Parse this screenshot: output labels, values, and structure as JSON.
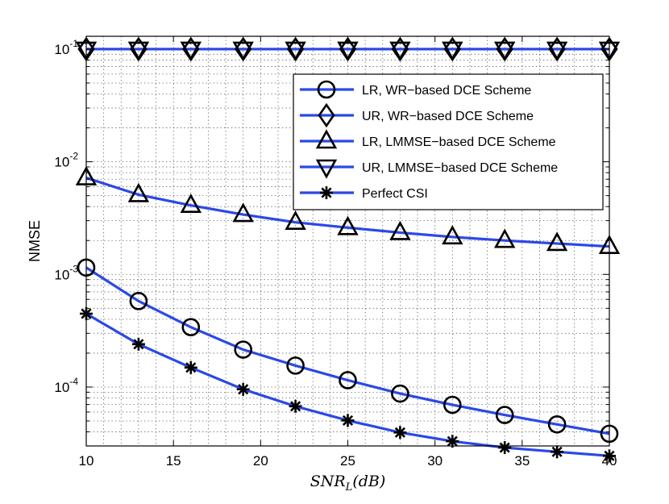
{
  "chart_data": {
    "type": "line",
    "title": "",
    "xlabel": "SNR_L(dB)",
    "xlabel_main": "SNR",
    "xlabel_sub": "L",
    "xlabel_rest": "(dB)",
    "ylabel": "NMSE",
    "yscale": "log",
    "xlim": [
      10,
      40
    ],
    "ylim": [
      3e-05,
      0.13
    ],
    "grid": true,
    "legend_position": "upper-right",
    "x": [
      10,
      13,
      16,
      19,
      22,
      25,
      28,
      31,
      34,
      37,
      40
    ],
    "xticks": [
      "10",
      "15",
      "20",
      "25",
      "30",
      "35",
      "40"
    ],
    "yticks": [
      {
        "value": 0.1,
        "base": "10",
        "exp": "-1"
      },
      {
        "value": 0.01,
        "base": "10",
        "exp": "-2"
      },
      {
        "value": 0.001,
        "base": "10",
        "exp": "-3"
      },
      {
        "value": 0.0001,
        "base": "10",
        "exp": "-4"
      }
    ],
    "series": [
      {
        "name": "LR, WR−based DCE Scheme",
        "marker": "circle",
        "values": [
          0.00115,
          0.00058,
          0.00034,
          0.000215,
          0.000155,
          0.000115,
          8.75e-05,
          6.95e-05,
          5.65e-05,
          4.66e-05,
          3.85e-05
        ]
      },
      {
        "name": "UR, WR−based DCE Scheme",
        "marker": "diamond",
        "values": [
          0.1,
          0.1,
          0.1,
          0.1,
          0.1,
          0.1,
          0.1,
          0.1,
          0.1,
          0.1,
          0.1
        ]
      },
      {
        "name": "LR, LMMSE−based DCE Scheme",
        "marker": "triangle-up",
        "values": [
          0.0072,
          0.0051,
          0.0041,
          0.0034,
          0.0029,
          0.0026,
          0.00235,
          0.00215,
          0.002,
          0.00188,
          0.00177
        ]
      },
      {
        "name": "UR, LMMSE−based DCE Scheme",
        "marker": "triangle-down",
        "values": [
          0.1,
          0.1,
          0.1,
          0.1,
          0.1,
          0.1,
          0.1,
          0.1,
          0.1,
          0.1,
          0.1
        ]
      },
      {
        "name": "Perfect CSI",
        "marker": "asterisk",
        "values": [
          0.000448,
          0.00024,
          0.000149,
          9.55e-05,
          6.75e-05,
          5.05e-05,
          3.95e-05,
          3.3e-05,
          2.9e-05,
          2.66e-05,
          2.45e-05
        ]
      }
    ],
    "colors": {
      "line": "#2b49e6",
      "marker": "#000000",
      "grid": "#555555",
      "axes": "#000000"
    }
  }
}
